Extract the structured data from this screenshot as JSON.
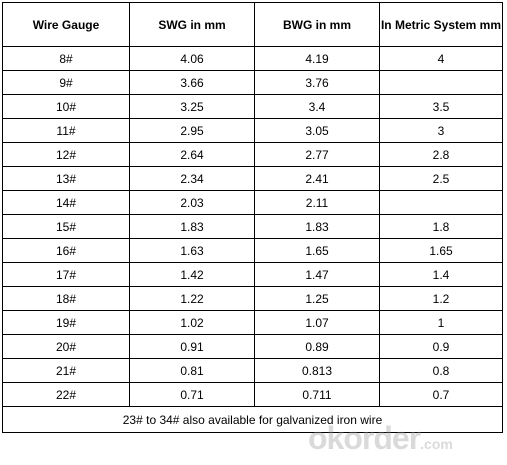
{
  "headers": [
    "Wire Gauge",
    "SWG in mm",
    "BWG in mm",
    "In Metric System mm"
  ],
  "rows": [
    [
      "8#",
      "4.06",
      "4.19",
      "4"
    ],
    [
      "9#",
      "3.66",
      "3.76",
      ""
    ],
    [
      "10#",
      "3.25",
      "3.4",
      "3.5"
    ],
    [
      "11#",
      "2.95",
      "3.05",
      "3"
    ],
    [
      "12#",
      "2.64",
      "2.77",
      "2.8"
    ],
    [
      "13#",
      "2.34",
      "2.41",
      "2.5"
    ],
    [
      "14#",
      "2.03",
      "2.11",
      ""
    ],
    [
      "15#",
      "1.83",
      "1.83",
      "1.8"
    ],
    [
      "16#",
      "1.63",
      "1.65",
      "1.65"
    ],
    [
      "17#",
      "1.42",
      "1.47",
      "1.4"
    ],
    [
      "18#",
      "1.22",
      "1.25",
      "1.2"
    ],
    [
      "19#",
      "1.02",
      "1.07",
      "1"
    ],
    [
      "20#",
      "0.91",
      "0.89",
      "0.9"
    ],
    [
      "21#",
      "0.81",
      "0.813",
      "0.8"
    ],
    [
      "22#",
      "0.71",
      "0.711",
      "0.7"
    ]
  ],
  "footer_note": "23# to 34# also available for galvanized iron wire",
  "watermark": {
    "main": "okorder",
    "suffix": ".com"
  }
}
